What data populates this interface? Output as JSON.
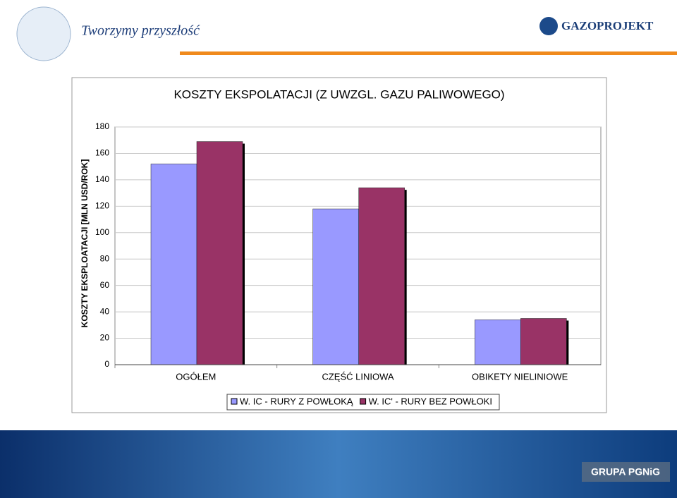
{
  "header": {
    "slogan": "Tworzymy przyszłość",
    "brand": "GAZOPROJEKT"
  },
  "footer": {
    "group": "GRUPA PGNiG"
  },
  "chart_data": {
    "type": "bar",
    "title": "KOSZTY EKSPOLATACJI (Z UWZGL. GAZU PALIWOWEGO)",
    "y_label": "KOSZTY EKSPLOATACJI [MLN USD/ROK]",
    "categories": [
      "OGÓŁEM",
      "CZĘŚĆ LINIOWA",
      "OBIKETY NIELINIOWE"
    ],
    "series": [
      {
        "name": "W. IC - RURY Z POWŁOKĄ",
        "color": "#9999ff",
        "values": [
          152,
          118,
          34
        ]
      },
      {
        "name": "W. IC' - RURY BEZ POWŁOKI",
        "color": "#993366",
        "values": [
          169,
          134,
          35
        ]
      }
    ],
    "ylim": [
      0,
      180
    ],
    "yticks": [
      0,
      20,
      40,
      60,
      80,
      100,
      120,
      140,
      160,
      180
    ],
    "grid": true,
    "legend": "bottom"
  }
}
